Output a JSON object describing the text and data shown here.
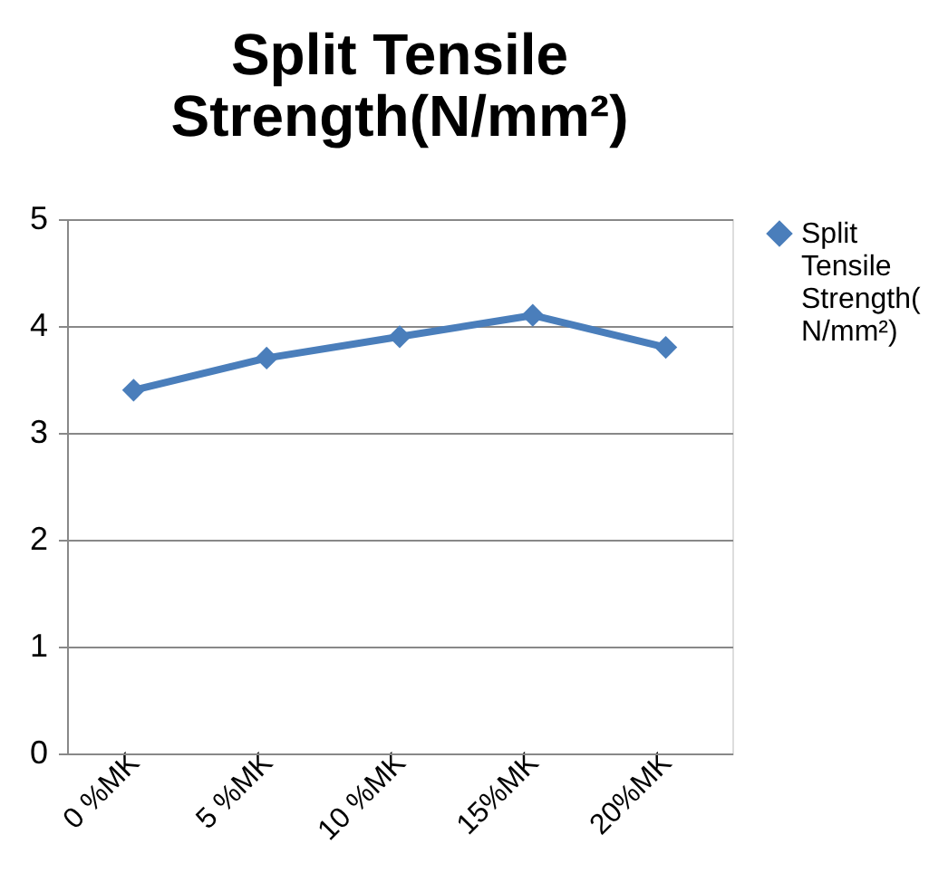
{
  "chart_data": {
    "type": "line",
    "title": "Split Tensile Strength(N/mm²)",
    "categories": [
      "0 %MK",
      "5 %MK",
      "10 %MK",
      "15%MK",
      "20%MK"
    ],
    "series": [
      {
        "name": "Split Tensile Strength(N/mm²)",
        "color": "#4a7ebb",
        "values": [
          3.4,
          3.7,
          3.9,
          4.1,
          3.8
        ]
      }
    ],
    "ylim": [
      0,
      5
    ],
    "yticks": [
      0,
      1,
      2,
      3,
      4,
      5
    ],
    "grid": "y",
    "legend": "right",
    "marker": "diamond",
    "line_style": "solid"
  }
}
